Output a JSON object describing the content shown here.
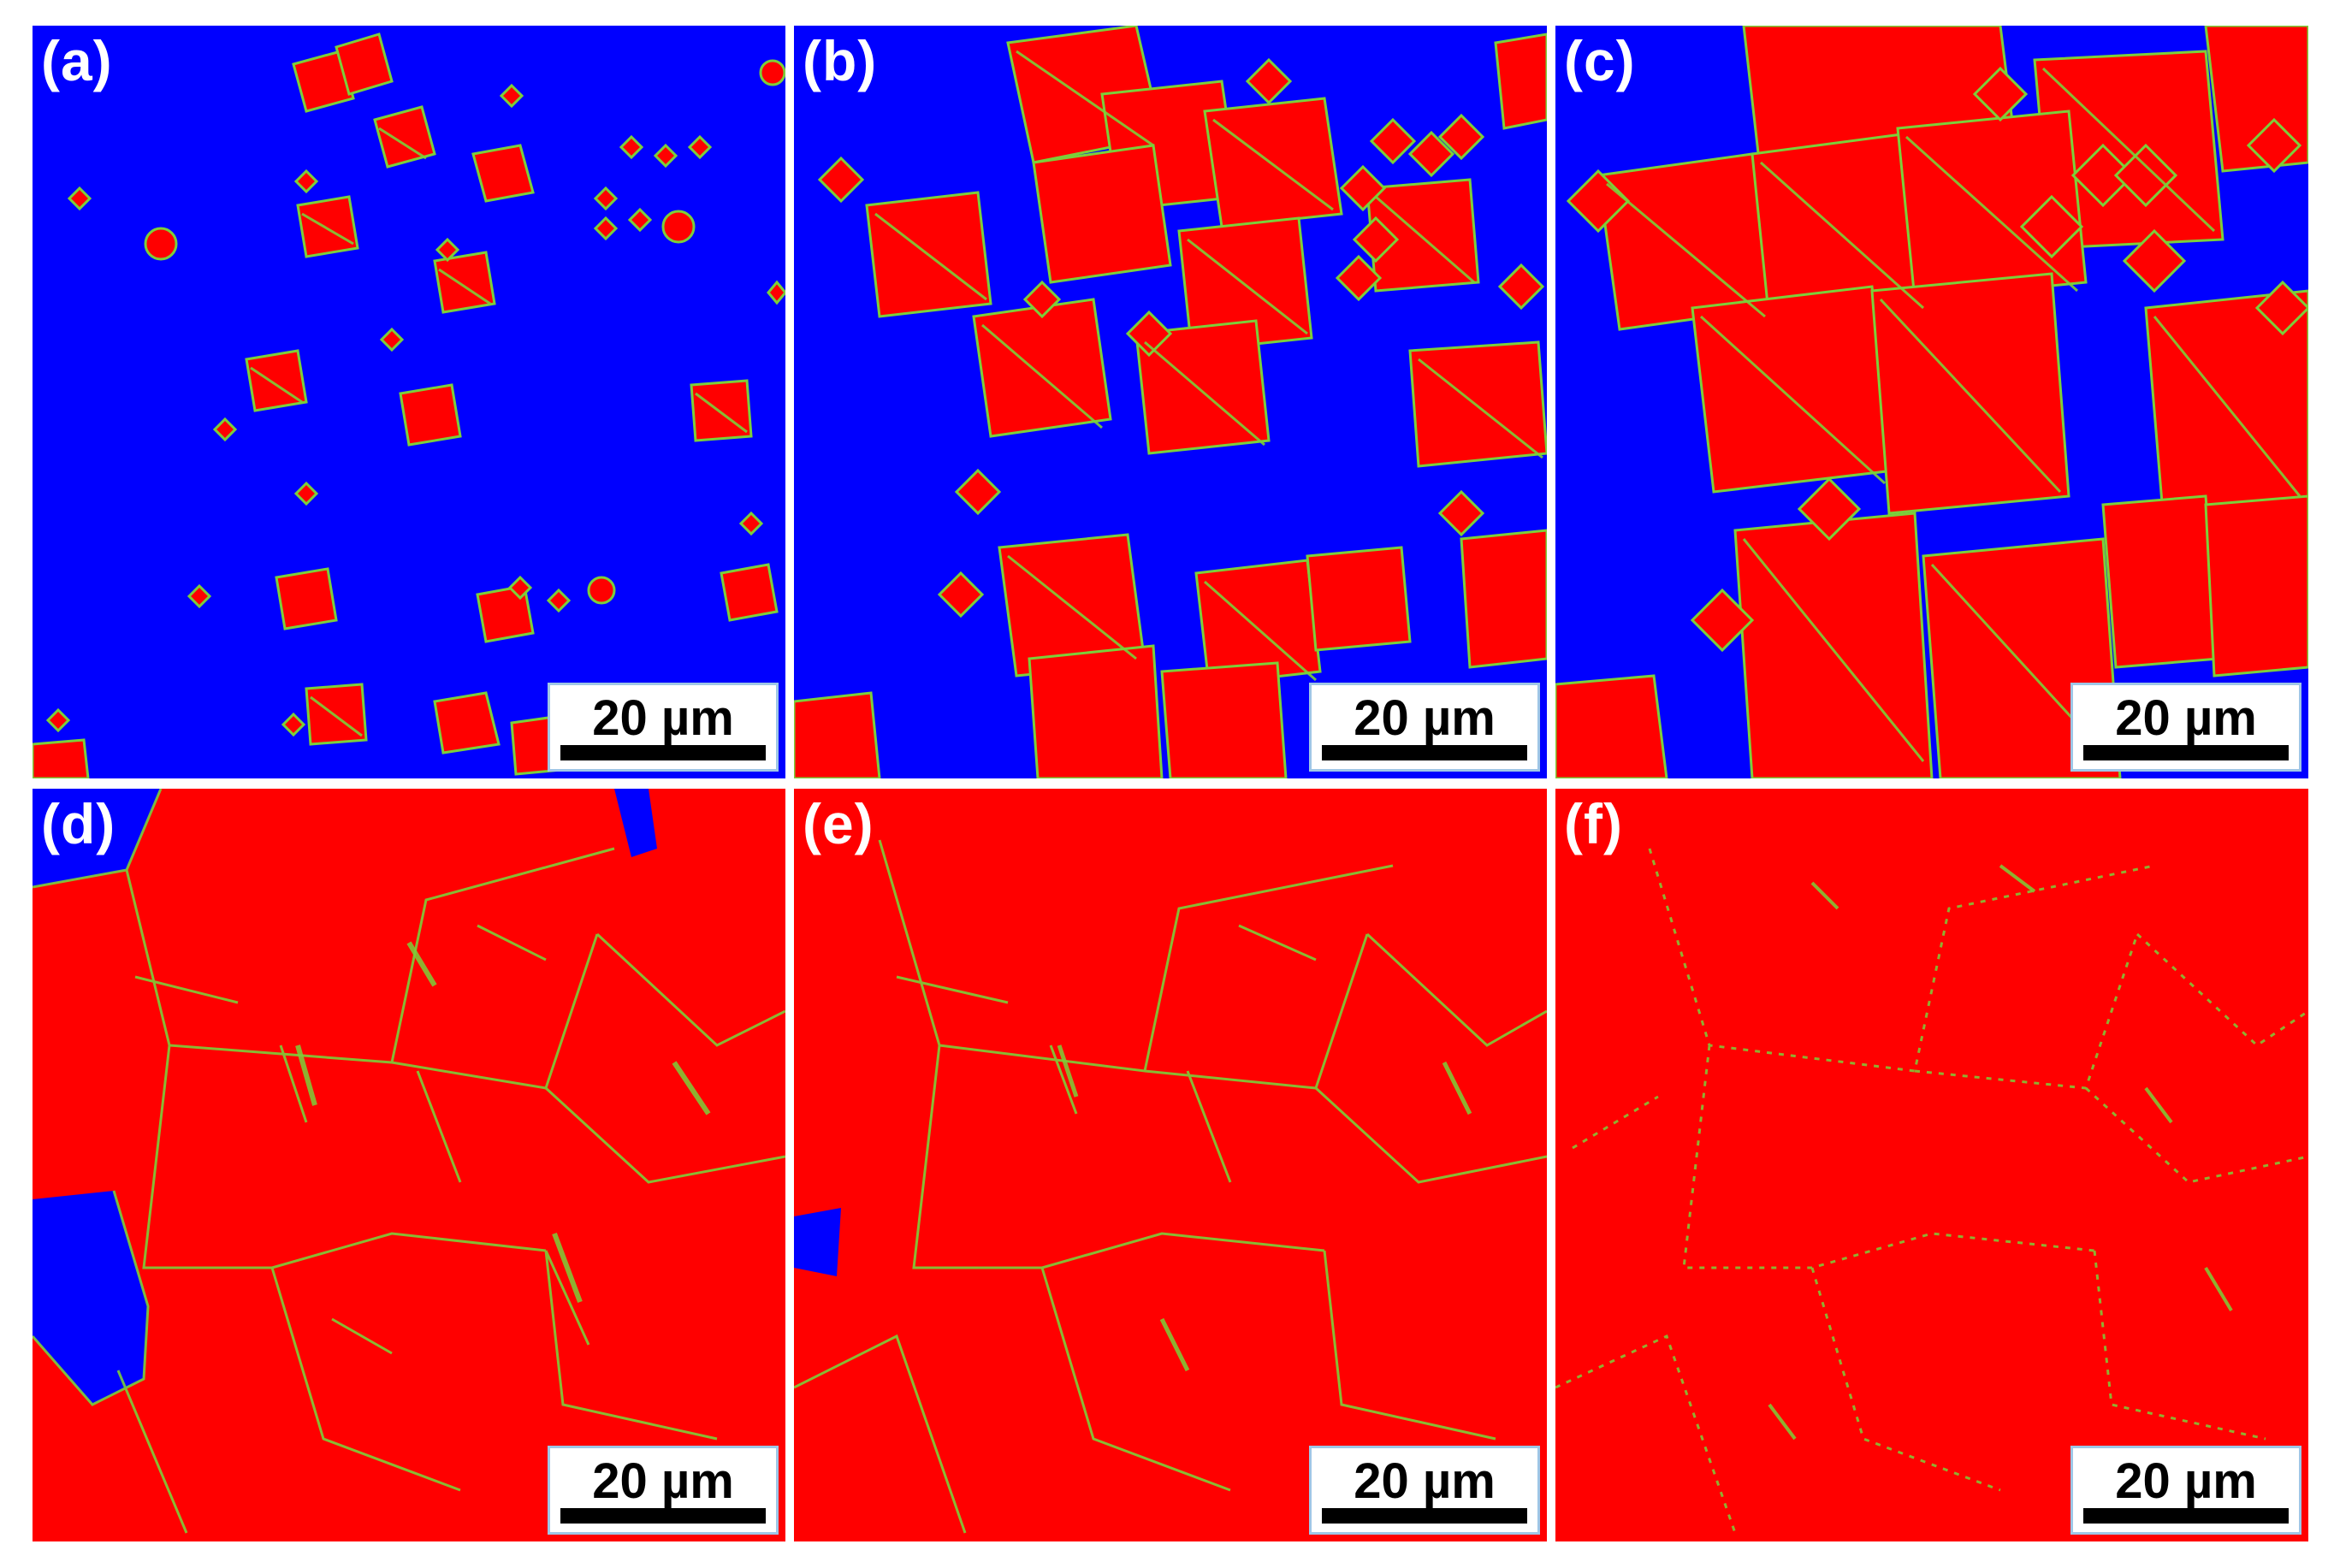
{
  "figure": {
    "panels": [
      {
        "label": "(a)",
        "scale_label": "20 µm"
      },
      {
        "label": "(b)",
        "scale_label": "20 µm"
      },
      {
        "label": "(c)",
        "scale_label": "20 µm"
      },
      {
        "label": "(d)",
        "scale_label": "20 µm"
      },
      {
        "label": "(e)",
        "scale_label": "20 µm"
      },
      {
        "label": "(f)",
        "scale_label": "20 µm"
      }
    ]
  },
  "colors": {
    "matrix": "#0000ff",
    "grain": "#ff0000",
    "boundary": "#7ccf3a",
    "separator": "#ffffff",
    "scalebar_border": "#9fc6e6"
  }
}
